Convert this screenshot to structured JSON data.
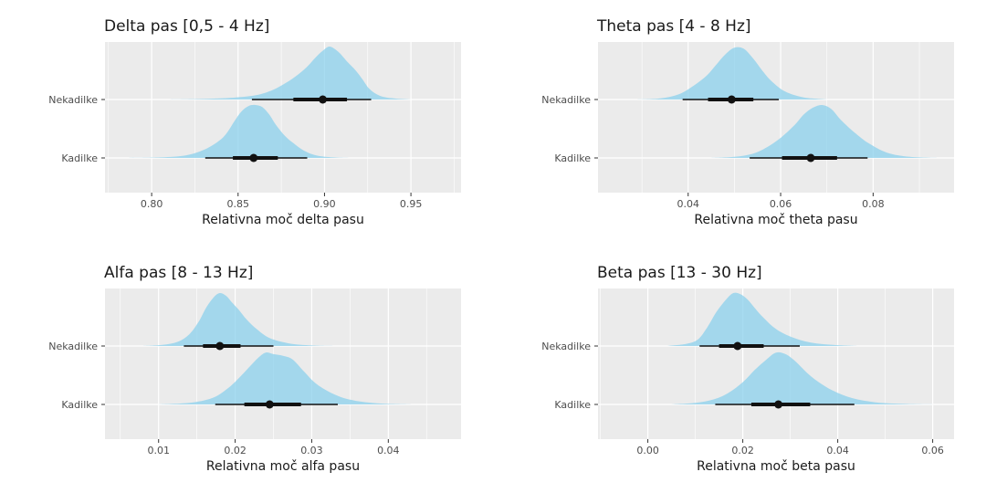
{
  "figure": {
    "colors": {
      "panel_bg": "#ebebeb",
      "grid": "#ffffff",
      "fill": "#87ceeb",
      "interval": "#111111"
    }
  },
  "chart_data": [
    {
      "type": "halfeye",
      "title": "Delta pas [0,5 - 4 Hz]",
      "xlabel": "Relativna moč delta pasu",
      "ylabel": "",
      "xlim": [
        0.773,
        0.979
      ],
      "xticks": [
        0.8,
        0.85,
        0.9,
        0.95
      ],
      "xtick_labels": [
        "0.80",
        "0.85",
        "0.90",
        "0.95"
      ],
      "categories": [
        "Nekadilke",
        "Kadilke"
      ],
      "series": [
        {
          "category": "Nekadilke",
          "median": 0.899,
          "ci66": [
            0.882,
            0.913
          ],
          "ci95": [
            0.858,
            0.927
          ],
          "density_x": [
            0.81,
            0.83,
            0.845,
            0.86,
            0.87,
            0.878,
            0.885,
            0.89,
            0.895,
            0.899,
            0.903,
            0.908,
            0.913,
            0.918,
            0.922,
            0.926,
            0.932,
            0.94,
            0.95
          ],
          "density_y": [
            0,
            0.01,
            0.03,
            0.08,
            0.18,
            0.32,
            0.48,
            0.62,
            0.8,
            0.92,
            1.0,
            0.9,
            0.72,
            0.55,
            0.38,
            0.2,
            0.07,
            0.02,
            0
          ]
        },
        {
          "category": "Kadilke",
          "median": 0.859,
          "ci66": [
            0.847,
            0.873
          ],
          "ci95": [
            0.831,
            0.89
          ],
          "density_x": [
            0.785,
            0.805,
            0.82,
            0.83,
            0.838,
            0.843,
            0.848,
            0.852,
            0.856,
            0.86,
            0.864,
            0.868,
            0.872,
            0.877,
            0.882,
            0.888,
            0.895,
            0.905,
            0.915
          ],
          "density_y": [
            0,
            0.01,
            0.05,
            0.15,
            0.3,
            0.45,
            0.7,
            0.88,
            0.98,
            1.0,
            0.96,
            0.82,
            0.62,
            0.42,
            0.28,
            0.14,
            0.05,
            0.01,
            0
          ]
        }
      ]
    },
    {
      "type": "halfeye",
      "title": "Theta pas [4 - 8 Hz]",
      "xlabel": "Relativna moč theta pasu",
      "ylabel": "",
      "xlim": [
        0.0205,
        0.0975
      ],
      "xticks": [
        0.04,
        0.06,
        0.08
      ],
      "xtick_labels": [
        "0.04",
        "0.06",
        "0.08"
      ],
      "categories": [
        "Nekadilke",
        "Kadilke"
      ],
      "series": [
        {
          "category": "Nekadilke",
          "median": 0.0494,
          "ci66": [
            0.0443,
            0.0541
          ],
          "ci95": [
            0.0388,
            0.0596
          ],
          "density_x": [
            0.029,
            0.034,
            0.038,
            0.041,
            0.044,
            0.046,
            0.048,
            0.05,
            0.052,
            0.054,
            0.056,
            0.058,
            0.061,
            0.065,
            0.07
          ],
          "density_y": [
            0,
            0.02,
            0.1,
            0.25,
            0.45,
            0.65,
            0.85,
            0.98,
            0.96,
            0.78,
            0.55,
            0.35,
            0.15,
            0.04,
            0
          ]
        },
        {
          "category": "Kadilke",
          "median": 0.0665,
          "ci66": [
            0.0603,
            0.0722
          ],
          "ci95": [
            0.0533,
            0.0788
          ],
          "density_x": [
            0.045,
            0.05,
            0.054,
            0.057,
            0.06,
            0.063,
            0.065,
            0.067,
            0.069,
            0.071,
            0.073,
            0.076,
            0.079,
            0.083,
            0.088,
            0.094
          ],
          "density_y": [
            0,
            0.02,
            0.08,
            0.2,
            0.38,
            0.62,
            0.82,
            0.95,
            1.0,
            0.92,
            0.72,
            0.48,
            0.28,
            0.1,
            0.02,
            0
          ]
        }
      ]
    },
    {
      "type": "halfeye",
      "title": "Alfa pas [8 - 13 Hz]",
      "xlabel": "Relativna moč alfa pasu",
      "ylabel": "",
      "xlim": [
        0.003,
        0.0495
      ],
      "xticks": [
        0.01,
        0.02,
        0.03,
        0.04
      ],
      "xtick_labels": [
        "0.01",
        "0.02",
        "0.03",
        "0.04"
      ],
      "categories": [
        "Nekadilke",
        "Kadilke"
      ],
      "series": [
        {
          "category": "Nekadilke",
          "median": 0.018,
          "ci66": [
            0.0158,
            0.0207
          ],
          "ci95": [
            0.0133,
            0.025
          ],
          "density_x": [
            0.008,
            0.0105,
            0.0125,
            0.014,
            0.0152,
            0.0162,
            0.0172,
            0.018,
            0.0188,
            0.0196,
            0.0205,
            0.0215,
            0.0228,
            0.0245,
            0.027,
            0.03,
            0.033
          ],
          "density_y": [
            0,
            0.02,
            0.08,
            0.22,
            0.45,
            0.72,
            0.92,
            1.0,
            0.95,
            0.82,
            0.68,
            0.5,
            0.32,
            0.15,
            0.05,
            0.01,
            0
          ]
        },
        {
          "category": "Kadilke",
          "median": 0.0245,
          "ci66": [
            0.0212,
            0.0286
          ],
          "ci95": [
            0.0174,
            0.0334
          ],
          "density_x": [
            0.01,
            0.014,
            0.017,
            0.019,
            0.0205,
            0.0218,
            0.023,
            0.024,
            0.025,
            0.0262,
            0.0275,
            0.029,
            0.0305,
            0.0325,
            0.035,
            0.0385,
            0.043
          ],
          "density_y": [
            0,
            0.03,
            0.12,
            0.3,
            0.5,
            0.7,
            0.88,
            0.98,
            0.95,
            0.92,
            0.85,
            0.62,
            0.4,
            0.22,
            0.09,
            0.02,
            0
          ]
        }
      ]
    },
    {
      "type": "halfeye",
      "title": "Beta pas [13 - 30 Hz]",
      "xlabel": "Relativna moč beta pasu",
      "ylabel": "",
      "xlim": [
        -0.0105,
        0.0645
      ],
      "xticks": [
        0.0,
        0.02,
        0.04,
        0.06
      ],
      "xtick_labels": [
        "0.00",
        "0.02",
        "0.04",
        "0.06"
      ],
      "categories": [
        "Nekadilke",
        "Kadilke"
      ],
      "series": [
        {
          "category": "Nekadilke",
          "median": 0.0189,
          "ci66": [
            0.015,
            0.0244
          ],
          "ci95": [
            0.0109,
            0.032
          ],
          "density_x": [
            0.004,
            0.008,
            0.0105,
            0.0125,
            0.0145,
            0.0165,
            0.018,
            0.0195,
            0.021,
            0.0225,
            0.0245,
            0.027,
            0.03,
            0.034,
            0.039,
            0.044
          ],
          "density_y": [
            0,
            0.04,
            0.12,
            0.35,
            0.65,
            0.88,
            1.0,
            0.98,
            0.88,
            0.72,
            0.52,
            0.32,
            0.18,
            0.07,
            0.02,
            0
          ]
        },
        {
          "category": "Kadilke",
          "median": 0.0275,
          "ci66": [
            0.0218,
            0.0342
          ],
          "ci95": [
            0.0142,
            0.0435
          ],
          "density_x": [
            0.005,
            0.01,
            0.014,
            0.017,
            0.02,
            0.0225,
            0.025,
            0.027,
            0.029,
            0.031,
            0.0335,
            0.036,
            0.039,
            0.043,
            0.048,
            0.054,
            0.06
          ],
          "density_y": [
            0,
            0.03,
            0.1,
            0.22,
            0.42,
            0.65,
            0.85,
            0.98,
            0.95,
            0.82,
            0.6,
            0.42,
            0.26,
            0.12,
            0.04,
            0.01,
            0
          ]
        }
      ]
    }
  ]
}
